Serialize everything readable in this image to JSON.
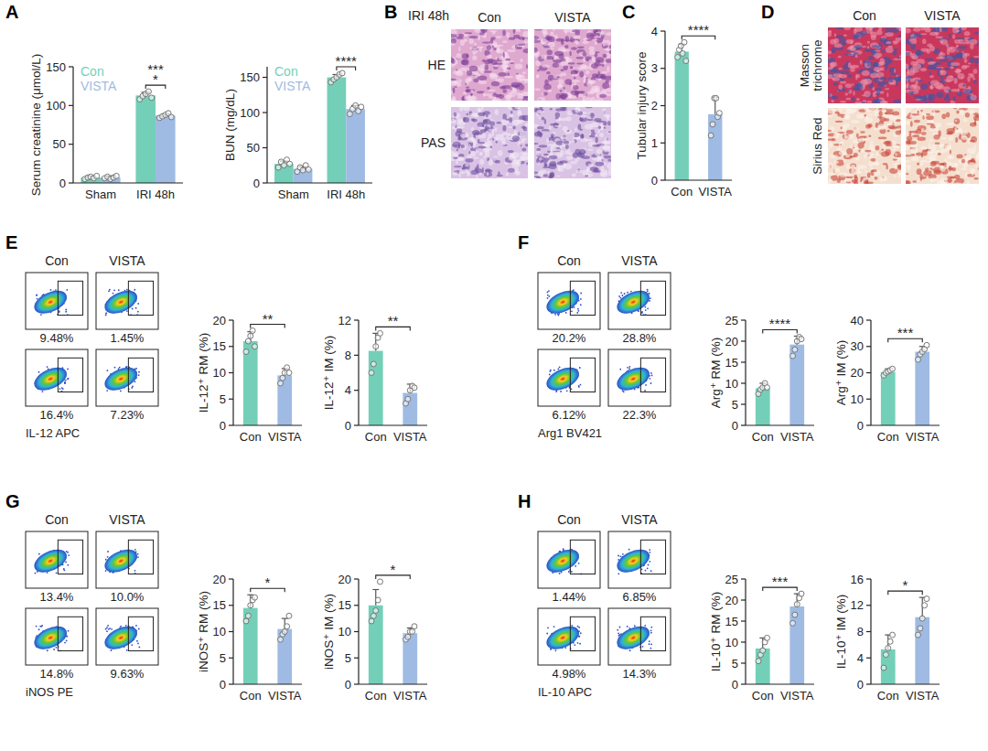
{
  "panel_letters": [
    "A",
    "B",
    "C",
    "D",
    "E",
    "F",
    "G",
    "H"
  ],
  "chart_data": [
    {
      "type": "bar",
      "y_label": "Serum creatinine (μmol/L)",
      "categories": [
        "Sham",
        "IRI 48h"
      ],
      "legend": "top-left",
      "series": [
        {
          "name": "Con",
          "color": "#74cfb9",
          "values": [
            7,
            113
          ],
          "errors": [
            2,
            4
          ],
          "points": [
            [
              5,
              7,
              8,
              6,
              9
            ],
            [
              108,
              112,
              115,
              118,
              110
            ]
          ]
        },
        {
          "name": "VISTA",
          "color": "#9fbbe3",
          "values": [
            7,
            87
          ],
          "errors": [
            2,
            2
          ],
          "points": [
            [
              6,
              8,
              5,
              7,
              9
            ],
            [
              84,
              86,
              88,
              90,
              85
            ]
          ]
        }
      ],
      "ylim": [
        0,
        150
      ],
      "yticks": [
        0,
        50,
        100,
        150
      ],
      "annotations": [
        "***",
        "*"
      ]
    },
    {
      "type": "bar",
      "y_label": "BUN (mg/dL)",
      "categories": [
        "Sham",
        "IRI 48h"
      ],
      "legend": "top-left",
      "series": [
        {
          "name": "Con",
          "color": "#74cfb9",
          "values": [
            27,
            150
          ],
          "errors": [
            4,
            4
          ],
          "points": [
            [
              22,
              30,
              25,
              33,
              27
            ],
            [
              143,
              147,
              150,
              154,
              156
            ]
          ]
        },
        {
          "name": "VISTA",
          "color": "#9fbbe3",
          "values": [
            20,
            105
          ],
          "errors": [
            3,
            5
          ],
          "points": [
            [
              16,
              22,
              18,
              25,
              19
            ],
            [
              98,
              105,
              110,
              102,
              108
            ]
          ]
        }
      ],
      "ylim": [
        0,
        165
      ],
      "yticks": [
        0,
        50,
        100,
        150
      ],
      "annotations": [
        "****"
      ]
    },
    {
      "type": "bar",
      "y_label": "Tubular injury score",
      "categories": [
        "Con",
        "VISTA"
      ],
      "colors": [
        "#74cfb9",
        "#9fbbe3"
      ],
      "values": [
        3.45,
        1.77
      ],
      "errors": [
        0.2,
        0.45
      ],
      "points": [
        [
          3.3,
          3.5,
          3.6,
          3.4,
          3.7,
          3.2
        ],
        [
          1.2,
          1.5,
          2.2,
          2.2,
          1.7,
          1.8
        ]
      ],
      "ylim": [
        0,
        4
      ],
      "yticks": [
        0,
        1,
        2,
        3,
        4
      ],
      "annotations": [
        "****"
      ]
    },
    {
      "type": "bar",
      "y_label": "IL-12⁺ RM (%)",
      "categories": [
        "Con",
        "VISTA"
      ],
      "colors": [
        "#74cfb9",
        "#9fbbe3"
      ],
      "values": [
        16,
        9.5
      ],
      "errors": [
        1.8,
        1.3
      ],
      "points": [
        [
          14,
          16,
          17,
          18,
          15
        ],
        [
          8,
          9,
          10,
          11,
          10
        ]
      ],
      "ylim": [
        0,
        20
      ],
      "yticks": [
        0,
        5,
        10,
        15,
        20
      ],
      "annotations": [
        "**"
      ]
    },
    {
      "type": "bar",
      "y_label": "IL-12⁺ IM (%)",
      "categories": [
        "Con",
        "VISTA"
      ],
      "colors": [
        "#74cfb9",
        "#9fbbe3"
      ],
      "values": [
        8.5,
        3.7
      ],
      "errors": [
        2,
        1
      ],
      "points": [
        [
          6,
          7,
          9,
          10,
          10.5
        ],
        [
          2.5,
          3,
          4,
          4.5,
          4.3
        ]
      ],
      "ylim": [
        0,
        12
      ],
      "yticks": [
        0,
        4,
        8,
        12
      ],
      "annotations": [
        "**"
      ]
    },
    {
      "type": "bar",
      "y_label": "Arg⁺ RM (%)",
      "categories": [
        "Con",
        "VISTA"
      ],
      "colors": [
        "#74cfb9",
        "#9fbbe3"
      ],
      "values": [
        8.8,
        19.2
      ],
      "errors": [
        1.2,
        2
      ],
      "points": [
        [
          7.5,
          8.5,
          9,
          10,
          9
        ],
        [
          16.5,
          18,
          20,
          21,
          20.5
        ]
      ],
      "ylim": [
        0,
        25
      ],
      "yticks": [
        0,
        5,
        10,
        15,
        20,
        25
      ],
      "annotations": [
        "****"
      ]
    },
    {
      "type": "bar",
      "y_label": "Arg⁺ IM (%)",
      "categories": [
        "Con",
        "VISTA"
      ],
      "colors": [
        "#74cfb9",
        "#9fbbe3"
      ],
      "values": [
        20.3,
        28
      ],
      "errors": [
        1.2,
        2
      ],
      "points": [
        [
          19,
          20,
          20.5,
          21,
          21.5
        ],
        [
          25,
          27,
          28,
          29,
          30.5
        ]
      ],
      "ylim": [
        0,
        40
      ],
      "yticks": [
        0,
        10,
        20,
        30,
        40
      ],
      "annotations": [
        "***"
      ]
    },
    {
      "type": "bar",
      "y_label": "iNOS⁺ RM (%)",
      "categories": [
        "Con",
        "VISTA"
      ],
      "colors": [
        "#74cfb9",
        "#9fbbe3"
      ],
      "values": [
        14.5,
        10.5
      ],
      "errors": [
        2.5,
        2
      ],
      "points": [
        [
          12,
          13,
          15,
          16,
          16.5
        ],
        [
          8.5,
          9.5,
          10,
          11,
          13
        ]
      ],
      "ylim": [
        0,
        20
      ],
      "yticks": [
        0,
        5,
        10,
        15,
        20
      ],
      "annotations": [
        "*"
      ]
    },
    {
      "type": "bar",
      "y_label": "iNOS⁺ IM (%)",
      "categories": [
        "Con",
        "VISTA"
      ],
      "colors": [
        "#74cfb9",
        "#9fbbe3"
      ],
      "values": [
        15,
        9.7
      ],
      "errors": [
        3,
        1
      ],
      "points": [
        [
          12,
          13,
          14,
          16,
          19.5
        ],
        [
          8.5,
          9,
          10,
          10,
          11
        ]
      ],
      "ylim": [
        0,
        20
      ],
      "yticks": [
        0,
        5,
        10,
        15,
        20
      ],
      "annotations": [
        "*"
      ]
    },
    {
      "type": "bar",
      "y_label": "IL-10⁺ RM (%)",
      "categories": [
        "Con",
        "VISTA"
      ],
      "colors": [
        "#74cfb9",
        "#9fbbe3"
      ],
      "values": [
        8.5,
        18.5
      ],
      "errors": [
        2.5,
        3
      ],
      "points": [
        [
          5.5,
          7,
          8,
          10,
          11
        ],
        [
          14.5,
          16.5,
          19,
          20.5,
          21.5
        ]
      ],
      "ylim": [
        0,
        25
      ],
      "yticks": [
        0,
        5,
        10,
        15,
        20,
        25
      ],
      "annotations": [
        "***"
      ]
    },
    {
      "type": "bar",
      "y_label": "IL-10⁺ IM (%)",
      "categories": [
        "Con",
        "VISTA"
      ],
      "colors": [
        "#74cfb9",
        "#9fbbe3"
      ],
      "values": [
        5.3,
        10.2
      ],
      "errors": [
        2.2,
        3
      ],
      "points": [
        [
          2.5,
          4.5,
          5.5,
          6.5,
          7.5
        ],
        [
          7.5,
          8.5,
          10,
          12,
          13
        ]
      ],
      "ylim": [
        0,
        16
      ],
      "yticks": [
        0,
        4,
        8,
        12,
        16
      ],
      "annotations": [
        "*"
      ]
    }
  ],
  "images": [
    {
      "title": "IRI 48h",
      "columns": [
        "Con",
        "VISTA"
      ],
      "rows": [
        "HE",
        "PAS"
      ]
    },
    {
      "columns": [
        "Con",
        "VISTA"
      ],
      "rows": [
        "Masson trichrome",
        "Sirius Red"
      ]
    }
  ],
  "flow": [
    {
      "columns": [
        "Con",
        "VISTA"
      ],
      "rows": [
        [
          "9.48%",
          "1.45%"
        ],
        [
          "16.4%",
          "7.23%"
        ]
      ],
      "x_label": "IL-12 APC"
    },
    {
      "columns": [
        "Con",
        "VISTA"
      ],
      "rows": [
        [
          "20.2%",
          "28.8%"
        ],
        [
          "6.12%",
          "22.3%"
        ]
      ],
      "x_label": "Arg1 BV421"
    },
    {
      "columns": [
        "Con",
        "VISTA"
      ],
      "rows": [
        [
          "13.4%",
          "10.0%"
        ],
        [
          "14.8%",
          "9.63%"
        ]
      ],
      "x_label": "iNOS PE"
    },
    {
      "columns": [
        "Con",
        "VISTA"
      ],
      "rows": [
        [
          "1.44%",
          "6.85%"
        ],
        [
          "4.98%",
          "14.3%"
        ]
      ],
      "x_label": "IL-10 APC"
    }
  ]
}
